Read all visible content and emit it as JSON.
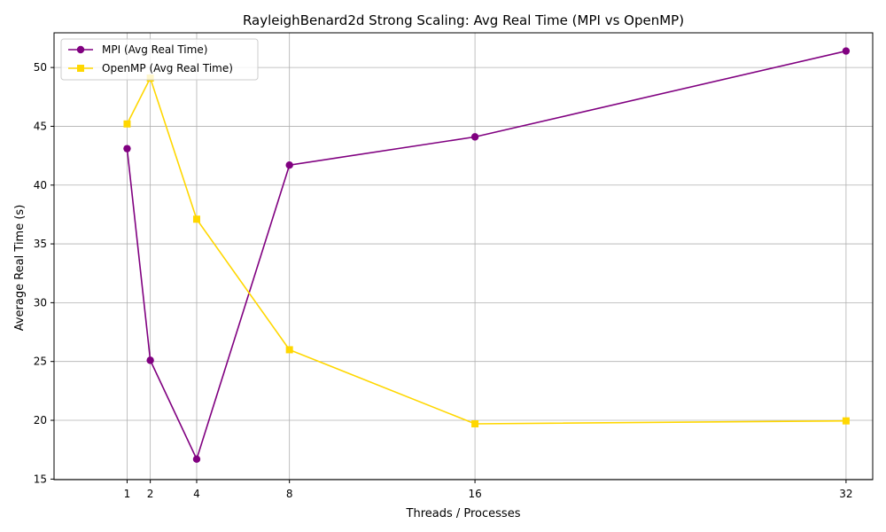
{
  "chart_data": {
    "type": "line",
    "title": "RayleighBenard2d Strong Scaling: Avg Real Time (MPI vs OpenMP)",
    "xlabel": "Threads / Processes",
    "ylabel": "Average Real Time (s)",
    "x": [
      1,
      2,
      4,
      8,
      16,
      32
    ],
    "x_ticks": [
      "1",
      "2",
      "4",
      "8",
      "16",
      "32"
    ],
    "y_ticks": [
      "15",
      "20",
      "25",
      "30",
      "35",
      "40",
      "45",
      "50"
    ],
    "xlim": [
      -2.15,
      33.15
    ],
    "ylim": [
      14.95,
      52.95
    ],
    "grid": true,
    "legend_position": "upper left",
    "series": [
      {
        "name": "MPI (Avg Real Time)",
        "color": "#800080",
        "marker": "circle",
        "values": [
          43.1,
          25.1,
          16.7,
          41.7,
          44.1,
          51.4
        ]
      },
      {
        "name": "OpenMP (Avg Real Time)",
        "color": "#FFD700",
        "marker": "square",
        "values": [
          45.2,
          49.1,
          37.1,
          26.0,
          19.7,
          19.95
        ]
      }
    ]
  }
}
